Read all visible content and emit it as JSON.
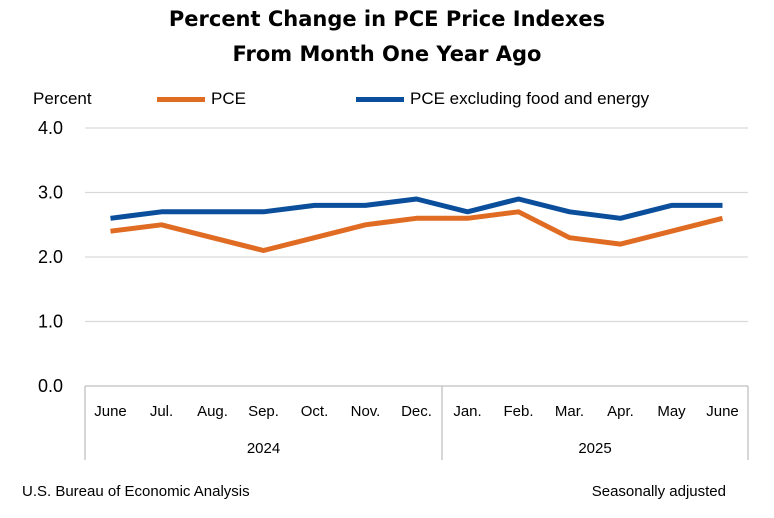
{
  "chart_data": {
    "type": "line",
    "title": [
      "Percent Change in PCE Price Indexes",
      "From Month One Year Ago"
    ],
    "ylabel": "Percent",
    "ylim": [
      0,
      4
    ],
    "yticks": [
      "0.0",
      "1.0",
      "2.0",
      "3.0",
      "4.0"
    ],
    "grid": true,
    "legend_position": "top",
    "categories": [
      "June",
      "Jul.",
      "Aug.",
      "Sep.",
      "Oct.",
      "Nov.",
      "Dec.",
      "Jan.",
      "Feb.",
      "Mar.",
      "Apr.",
      "May",
      "June"
    ],
    "years": [
      {
        "label": "2024",
        "start": 0,
        "end": 6
      },
      {
        "label": "2025",
        "start": 7,
        "end": 12
      }
    ],
    "series": [
      {
        "name": "PCE",
        "color": "#E06C23",
        "values": [
          2.4,
          2.5,
          2.3,
          2.1,
          2.3,
          2.5,
          2.6,
          2.6,
          2.7,
          2.3,
          2.2,
          2.4,
          2.6
        ]
      },
      {
        "name": "PCE excluding food and energy",
        "color": "#0B4F9C",
        "values": [
          2.6,
          2.7,
          2.7,
          2.7,
          2.8,
          2.8,
          2.9,
          2.7,
          2.9,
          2.7,
          2.6,
          2.8,
          2.8
        ]
      }
    ]
  },
  "source": "U.S. Bureau of Economic Analysis",
  "note": "Seasonally adjusted"
}
